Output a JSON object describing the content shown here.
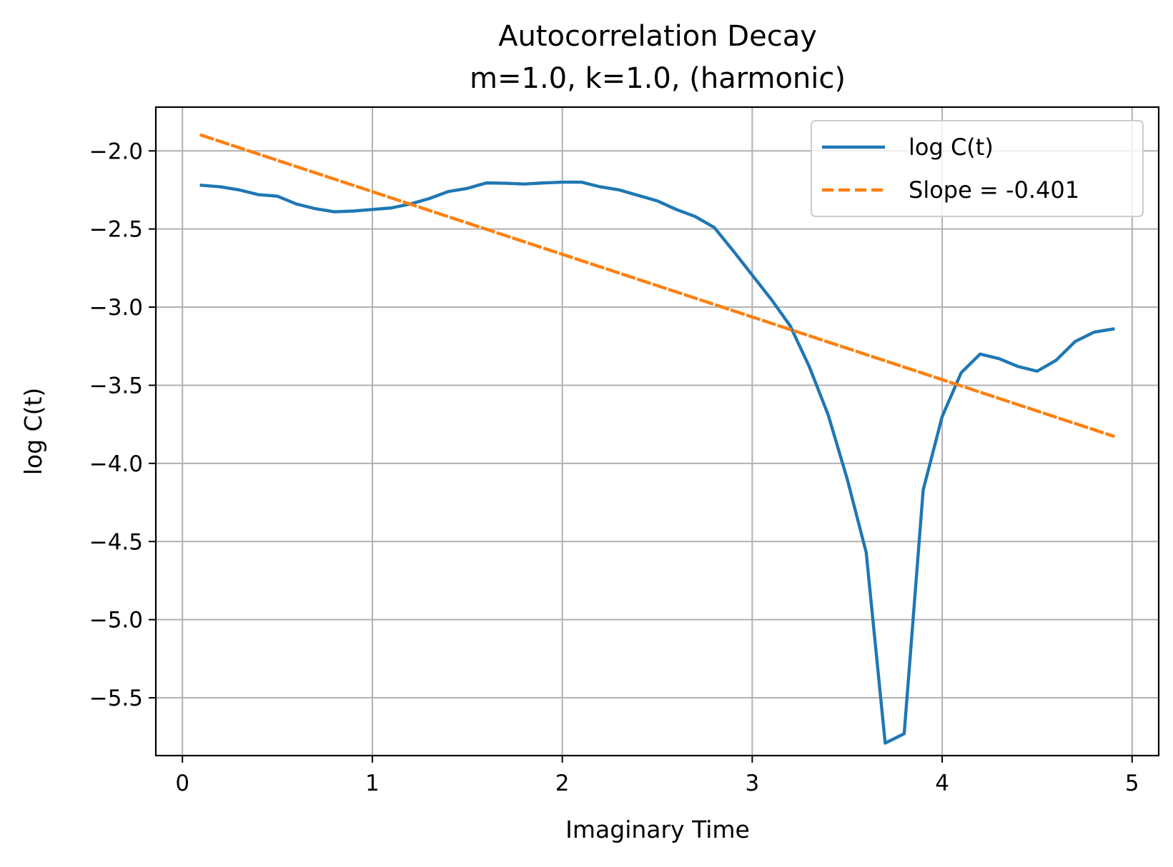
{
  "chart_data": {
    "type": "line",
    "title": [
      "Autocorrelation Decay",
      "m=1.0, k=1.0, (harmonic)"
    ],
    "xlabel": "Imaginary Time",
    "ylabel": "log C(t)",
    "xlim": [
      -0.14,
      5.14
    ],
    "ylim": [
      -5.87,
      -1.72
    ],
    "xticks": [
      0,
      1,
      2,
      3,
      4,
      5
    ],
    "xtick_labels": [
      "0",
      "1",
      "2",
      "3",
      "4",
      "5"
    ],
    "yticks": [
      -2.0,
      -2.5,
      -3.0,
      -3.5,
      -4.0,
      -4.5,
      -5.0,
      -5.5
    ],
    "ytick_labels": [
      "−2.0",
      "−2.5",
      "−3.0",
      "−3.5",
      "−4.0",
      "−4.5",
      "−5.0",
      "−5.5"
    ],
    "grid": true,
    "legend_position": "top-right",
    "series": [
      {
        "name": "log C(t)",
        "color": "#1f77b4",
        "style": "solid",
        "x": [
          0.1,
          0.2,
          0.3,
          0.4,
          0.5,
          0.6,
          0.7,
          0.8,
          0.9,
          1.0,
          1.1,
          1.2,
          1.3,
          1.4,
          1.5,
          1.6,
          1.7,
          1.8,
          1.9,
          2.0,
          2.1,
          2.2,
          2.3,
          2.4,
          2.5,
          2.6,
          2.7,
          2.8,
          2.9,
          3.0,
          3.1,
          3.2,
          3.3,
          3.4,
          3.5,
          3.6,
          3.7,
          3.8,
          3.9,
          4.0,
          4.1,
          4.2,
          4.3,
          4.4,
          4.5,
          4.6,
          4.7,
          4.8,
          4.9
        ],
        "y": [
          -2.22,
          -2.23,
          -2.25,
          -2.28,
          -2.29,
          -2.34,
          -2.37,
          -2.39,
          -2.385,
          -2.375,
          -2.365,
          -2.34,
          -2.305,
          -2.26,
          -2.24,
          -2.205,
          -2.207,
          -2.212,
          -2.205,
          -2.2,
          -2.2,
          -2.23,
          -2.25,
          -2.285,
          -2.32,
          -2.375,
          -2.42,
          -2.49,
          -2.64,
          -2.795,
          -2.95,
          -3.12,
          -3.38,
          -3.69,
          -4.1,
          -4.57,
          -5.79,
          -5.73,
          -4.17,
          -3.7,
          -3.42,
          -3.3,
          -3.33,
          -3.38,
          -3.41,
          -3.34,
          -3.22,
          -3.16,
          -3.14
        ]
      },
      {
        "name": "Slope = -0.401",
        "color": "#ff7f0e",
        "style": "dashed",
        "x": [
          0.1,
          4.9
        ],
        "y": [
          -1.9,
          -3.825
        ]
      }
    ]
  }
}
